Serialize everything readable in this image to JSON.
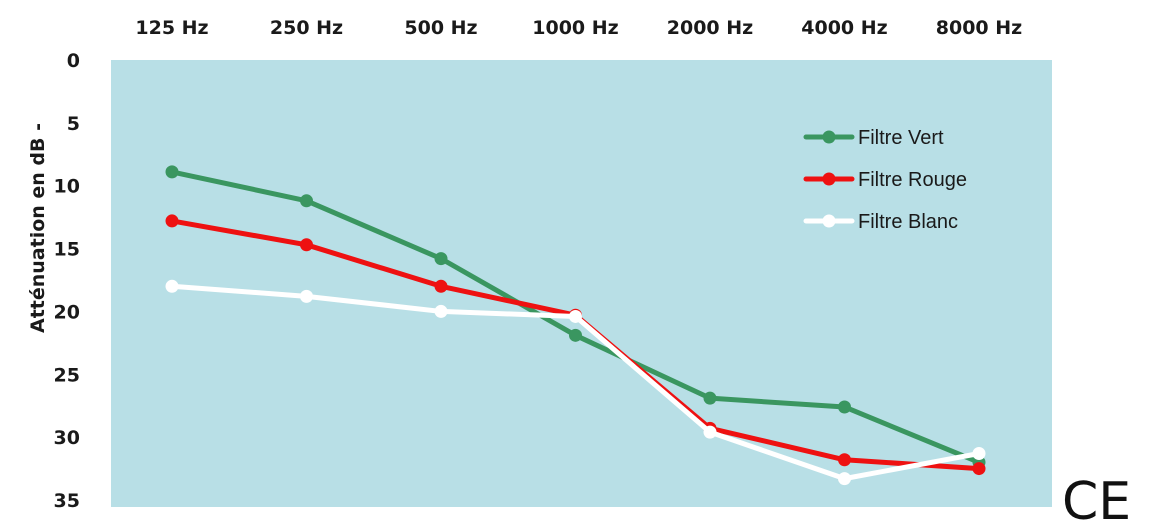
{
  "chart_data": {
    "type": "line",
    "title": "",
    "xlabel": "",
    "ylabel": "Atténuation en dB -",
    "categories": [
      "125 Hz",
      "250 Hz",
      "500 Hz",
      "1000 Hz",
      "2000 Hz",
      "4000 Hz",
      "8000 Hz"
    ],
    "y_ticks": [
      "0",
      "5",
      "10",
      "15",
      "20",
      "25",
      "30",
      "35"
    ],
    "ylim": [
      0,
      35
    ],
    "y_inverted": true,
    "x_axis_position": "top",
    "grid": false,
    "legend_position": "top-right",
    "plot_background": "#b8dfe6",
    "series": [
      {
        "name": "Filtre Vert",
        "color": "#3a9660",
        "values": [
          8.9,
          11.2,
          15.8,
          21.9,
          26.9,
          27.6,
          32.0
        ]
      },
      {
        "name": "Filtre Rouge",
        "color": "#ee1111",
        "values": [
          12.8,
          14.7,
          18.0,
          20.3,
          29.3,
          31.8,
          32.5
        ]
      },
      {
        "name": "Filtre Blanc",
        "color": "#ffffff",
        "values": [
          18.0,
          18.8,
          20.0,
          20.4,
          29.6,
          33.3,
          31.3
        ]
      }
    ]
  },
  "marks": {
    "ce": "CE"
  }
}
